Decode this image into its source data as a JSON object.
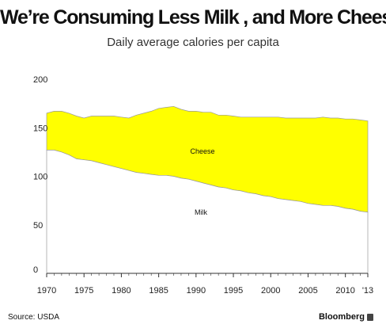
{
  "header": {
    "title": "We’re Consuming Less Milk , and More Cheese",
    "subtitle": "Daily average calories per capita"
  },
  "footer": {
    "source": "Source: USDA",
    "brand": "Bloomberg"
  },
  "colors": {
    "cheese": "#ffff00",
    "milk": "#ffffff",
    "outline": "#999999",
    "axis": "#333333"
  },
  "chart_data": {
    "type": "area",
    "stacked": true,
    "title": "We’re Consuming Less Milk , and More Cheese",
    "subtitle": "Daily average calories per capita",
    "xlabel": "",
    "ylabel": "",
    "xlim": [
      1970,
      2013
    ],
    "ylim": [
      0,
      200
    ],
    "grid": false,
    "y_ticks": [
      "0",
      "50",
      "100",
      "150",
      "200"
    ],
    "y_tick_values": [
      0,
      50,
      100,
      150,
      200
    ],
    "x_ticks": [
      "1970",
      "1975",
      "1980",
      "1985",
      "1990",
      "1995",
      "2000",
      "2005",
      "2010",
      "'13"
    ],
    "x_tick_values": [
      1970,
      1975,
      1980,
      1985,
      1990,
      1995,
      2000,
      2005,
      2010,
      2013
    ],
    "x": [
      1970,
      1971,
      1972,
      1973,
      1974,
      1975,
      1976,
      1977,
      1978,
      1979,
      1980,
      1981,
      1982,
      1983,
      1984,
      1985,
      1986,
      1987,
      1988,
      1989,
      1990,
      1991,
      1992,
      1993,
      1994,
      1995,
      1996,
      1997,
      1998,
      1999,
      2000,
      2001,
      2002,
      2003,
      2004,
      2005,
      2006,
      2007,
      2008,
      2009,
      2010,
      2011,
      2012,
      2013
    ],
    "series": [
      {
        "name": "Milk",
        "label": "Milk",
        "values": [
          127,
          127,
          125,
          122,
          118,
          117,
          116,
          114,
          112,
          110,
          108,
          106,
          104,
          103,
          102,
          101,
          101,
          100,
          98,
          97,
          95,
          93,
          91,
          89,
          88,
          86,
          85,
          83,
          82,
          80,
          79,
          77,
          76,
          75,
          74,
          72,
          71,
          70,
          70,
          69,
          67,
          66,
          64,
          63
        ]
      },
      {
        "name": "Cheese",
        "label": "Cheese",
        "values": [
          38,
          40,
          42,
          43,
          44,
          43,
          46,
          48,
          50,
          52,
          53,
          54,
          59,
          62,
          65,
          69,
          70,
          72,
          71,
          70,
          72,
          73,
          75,
          74,
          75,
          76,
          76,
          78,
          79,
          81,
          82,
          84,
          84,
          85,
          86,
          88,
          89,
          91,
          90,
          91,
          92,
          93,
          94,
          94
        ]
      }
    ]
  }
}
